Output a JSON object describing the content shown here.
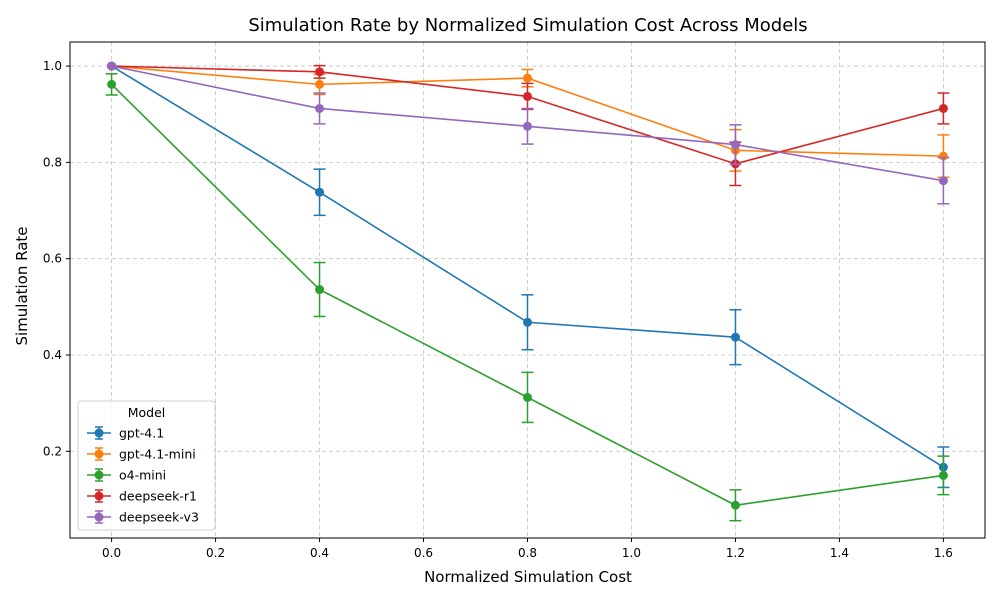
{
  "chart_data": {
    "type": "line",
    "title": "Simulation Rate by Normalized Simulation Cost Across Models",
    "xlabel": "Normalized Simulation Cost",
    "ylabel": "Simulation Rate",
    "xlim": [
      -0.08,
      1.68
    ],
    "ylim": [
      0.02,
      1.05
    ],
    "x_ticks": [
      0.0,
      0.2,
      0.4,
      0.6,
      0.8,
      1.0,
      1.2,
      1.4,
      1.6
    ],
    "x_tick_labels": [
      "0.0",
      "0.2",
      "0.4",
      "0.6",
      "0.8",
      "1.0",
      "1.2",
      "1.4",
      "1.6"
    ],
    "y_ticks": [
      0.2,
      0.4,
      0.6,
      0.8,
      1.0
    ],
    "y_tick_labels": [
      "0.2",
      "0.4",
      "0.6",
      "0.8",
      "1.0"
    ],
    "grid": true,
    "legend": {
      "title": "Model",
      "placement": "lower-left"
    },
    "x": [
      0.0,
      0.4,
      0.8,
      1.2,
      1.6
    ],
    "series": [
      {
        "name": "gpt-4.1",
        "color": "#1f77b4",
        "values": [
          1.0,
          0.738,
          0.468,
          0.437,
          0.167
        ],
        "errors": [
          0.0,
          0.048,
          0.057,
          0.057,
          0.042
        ]
      },
      {
        "name": "gpt-4.1-mini",
        "color": "#ff7f0e",
        "values": [
          1.0,
          0.962,
          0.975,
          0.825,
          0.813
        ],
        "errors": [
          0.0,
          0.021,
          0.018,
          0.043,
          0.044
        ]
      },
      {
        "name": "o4-mini",
        "color": "#2ca02c",
        "values": [
          0.962,
          0.536,
          0.312,
          0.088,
          0.15
        ],
        "errors": [
          0.022,
          0.056,
          0.052,
          0.032,
          0.04
        ]
      },
      {
        "name": "deepseek-r1",
        "color": "#d62728",
        "values": [
          1.0,
          0.988,
          0.937,
          0.797,
          0.912
        ],
        "errors": [
          0.0,
          0.013,
          0.027,
          0.045,
          0.032
        ]
      },
      {
        "name": "deepseek-v3",
        "color": "#9467bd",
        "values": [
          1.0,
          0.912,
          0.875,
          0.837,
          0.762
        ],
        "errors": [
          0.0,
          0.032,
          0.037,
          0.041,
          0.048
        ]
      }
    ]
  }
}
